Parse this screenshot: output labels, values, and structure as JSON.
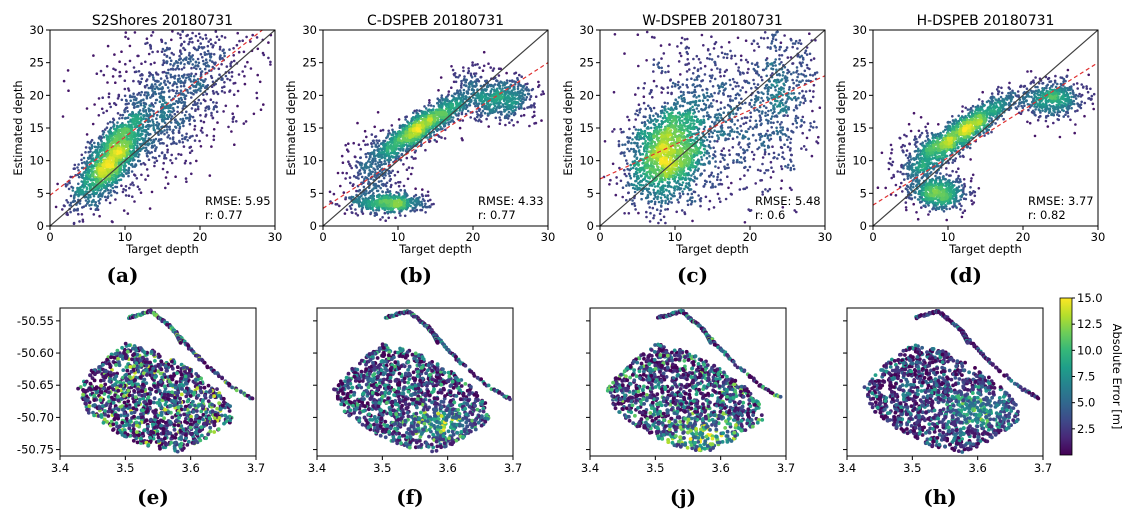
{
  "chart_data": [
    {
      "type": "scatter",
      "title": "S2Shores 20180731",
      "xlabel": "Target depth",
      "ylabel": "Estimated depth",
      "xlim": [
        0,
        30
      ],
      "ylim": [
        0,
        30
      ],
      "xticks": [
        "0",
        "10",
        "20",
        "30"
      ],
      "yticks": [
        "0",
        "5",
        "10",
        "15",
        "20",
        "25",
        "30"
      ],
      "annotations": [
        "RMSE: 5.95",
        "r: 0.77"
      ],
      "panel_label": "(a)",
      "identity_line": {
        "x": [
          0,
          30
        ],
        "y": [
          0,
          30
        ],
        "color": "#404040"
      },
      "fit_line": {
        "x": [
          0,
          30
        ],
        "y": [
          4.7,
          31.5
        ],
        "color": "#e03030"
      },
      "density_clusters": [
        {
          "cx": 8,
          "cy": 10,
          "sx": 2.3,
          "sy": 3.4,
          "rho": 0.72,
          "n": 1400
        },
        {
          "cx": 13,
          "cy": 15,
          "sx": 4,
          "sy": 5,
          "rho": 0.5,
          "n": 700
        },
        {
          "cx": 20,
          "cy": 24,
          "sx": 4,
          "sy": 5,
          "rho": 0.2,
          "n": 400
        },
        {
          "cx": 15,
          "cy": 22,
          "sx": 6,
          "sy": 6,
          "rho": 0,
          "n": 250
        }
      ]
    },
    {
      "type": "scatter",
      "title": "C-DSPEB 20180731",
      "xlabel": "Target depth",
      "ylabel": "Estimated depth",
      "xlim": [
        0,
        30
      ],
      "ylim": [
        0,
        30
      ],
      "xticks": [
        "0",
        "10",
        "20",
        "30"
      ],
      "yticks": [
        "0",
        "5",
        "10",
        "15",
        "20",
        "25",
        "30"
      ],
      "annotations": [
        "RMSE: 4.33",
        "r: 0.77"
      ],
      "panel_label": "(b)",
      "identity_line": {
        "x": [
          0,
          30
        ],
        "y": [
          0,
          30
        ],
        "color": "#404040"
      },
      "fit_line": {
        "x": [
          0,
          30
        ],
        "y": [
          2.7,
          25
        ],
        "color": "#e03030"
      },
      "density_clusters": [
        {
          "cx": 13,
          "cy": 15,
          "sx": 3.2,
          "sy": 2.6,
          "rho": 0.9,
          "n": 1300
        },
        {
          "cx": 24,
          "cy": 19.5,
          "sx": 2.2,
          "sy": 1.5,
          "rho": 0.1,
          "n": 500
        },
        {
          "cx": 9,
          "cy": 3.5,
          "sx": 2.5,
          "sy": 0.8,
          "rho": 0,
          "n": 500
        },
        {
          "cx": 7,
          "cy": 8,
          "sx": 1.8,
          "sy": 3.2,
          "rho": 0,
          "n": 300
        },
        {
          "cx": 20,
          "cy": 21,
          "sx": 2,
          "sy": 2.5,
          "rho": 0,
          "n": 150
        }
      ]
    },
    {
      "type": "scatter",
      "title": "W-DSPEB 20180731",
      "xlabel": "Target depth",
      "ylabel": "Estimated depth",
      "xlim": [
        0,
        30
      ],
      "ylim": [
        0,
        30
      ],
      "xticks": [
        "0",
        "10",
        "20",
        "30"
      ],
      "yticks": [
        "0",
        "5",
        "10",
        "15",
        "20",
        "25",
        "30"
      ],
      "annotations": [
        "RMSE: 5.48",
        "r: 0.6"
      ],
      "panel_label": "(c)",
      "identity_line": {
        "x": [
          0,
          30
        ],
        "y": [
          0,
          30
        ],
        "color": "#404040"
      },
      "fit_line": {
        "x": [
          0,
          30
        ],
        "y": [
          7.2,
          23
        ],
        "color": "#e03030"
      },
      "density_clusters": [
        {
          "cx": 9,
          "cy": 11,
          "sx": 2.6,
          "sy": 3.8,
          "rho": 0.3,
          "n": 1500
        },
        {
          "cx": 14,
          "cy": 14,
          "sx": 5,
          "sy": 6,
          "rho": 0.2,
          "n": 700
        },
        {
          "cx": 24,
          "cy": 20,
          "sx": 2.5,
          "sy": 6,
          "rho": 0,
          "n": 500
        },
        {
          "cx": 14,
          "cy": 22,
          "sx": 6,
          "sy": 6,
          "rho": 0,
          "n": 200
        }
      ]
    },
    {
      "type": "scatter",
      "title": "H-DSPEB 20180731",
      "xlabel": "Target depth",
      "ylabel": "Estimated depth",
      "xlim": [
        0,
        30
      ],
      "ylim": [
        0,
        30
      ],
      "xticks": [
        "0",
        "10",
        "20",
        "30"
      ],
      "yticks": [
        "0",
        "5",
        "10",
        "15",
        "20",
        "25",
        "30"
      ],
      "annotations": [
        "RMSE: 3.77",
        "r: 0.82"
      ],
      "panel_label": "(d)",
      "identity_line": {
        "x": [
          0,
          30
        ],
        "y": [
          0,
          30
        ],
        "color": "#404040"
      },
      "fit_line": {
        "x": [
          0,
          30
        ],
        "y": [
          3.2,
          25
        ],
        "color": "#e03030"
      },
      "density_clusters": [
        {
          "cx": 12,
          "cy": 14.5,
          "sx": 3.3,
          "sy": 2.8,
          "rho": 0.9,
          "n": 1300
        },
        {
          "cx": 24,
          "cy": 19.5,
          "sx": 2.2,
          "sy": 1.5,
          "rho": 0.1,
          "n": 500
        },
        {
          "cx": 9,
          "cy": 5,
          "sx": 1.8,
          "sy": 1.2,
          "rho": 0,
          "n": 500
        },
        {
          "cx": 7,
          "cy": 9,
          "sx": 2,
          "sy": 3,
          "rho": 0,
          "n": 300
        }
      ]
    },
    {
      "type": "scatter",
      "panel_label": "(e)",
      "xlim": [
        3.4,
        3.7
      ],
      "ylim": [
        -50.76,
        -50.53
      ],
      "xticks": [
        "3.4",
        "3.5",
        "3.6",
        "3.7"
      ],
      "yticks": [
        "-50.55",
        "-50.60",
        "-50.65",
        "-50.70",
        "-50.75"
      ],
      "error_level": 0.45
    },
    {
      "type": "scatter",
      "panel_label": "(f)",
      "xlim": [
        3.4,
        3.7
      ],
      "ylim": [
        -50.76,
        -50.53
      ],
      "xticks": [
        "3.4",
        "3.5",
        "3.6",
        "3.7"
      ],
      "error_level": 0.35,
      "high_error_zone": {
        "x": 3.59,
        "y": -50.71
      }
    },
    {
      "type": "scatter",
      "panel_label": "(j)",
      "xlim": [
        3.4,
        3.7
      ],
      "ylim": [
        -50.76,
        -50.53
      ],
      "xticks": [
        "3.4",
        "3.5",
        "3.6",
        "3.7"
      ],
      "error_level": 0.4,
      "high_error_zone": {
        "x": 3.58,
        "y": -50.73
      }
    },
    {
      "type": "scatter",
      "panel_label": "(h)",
      "xlim": [
        3.4,
        3.7
      ],
      "ylim": [
        -50.76,
        -50.53
      ],
      "xticks": [
        "3.4",
        "3.5",
        "3.6",
        "3.7"
      ],
      "error_level": 0.28,
      "high_error_zone": {
        "x": 3.6,
        "y": -50.69
      }
    }
  ],
  "colorbar": {
    "label": "Absolute Error [m]",
    "range": [
      0,
      15
    ],
    "ticks": [
      "2.5",
      "5.0",
      "7.5",
      "10.0",
      "12.5",
      "15.0"
    ],
    "colormap": "viridis"
  }
}
